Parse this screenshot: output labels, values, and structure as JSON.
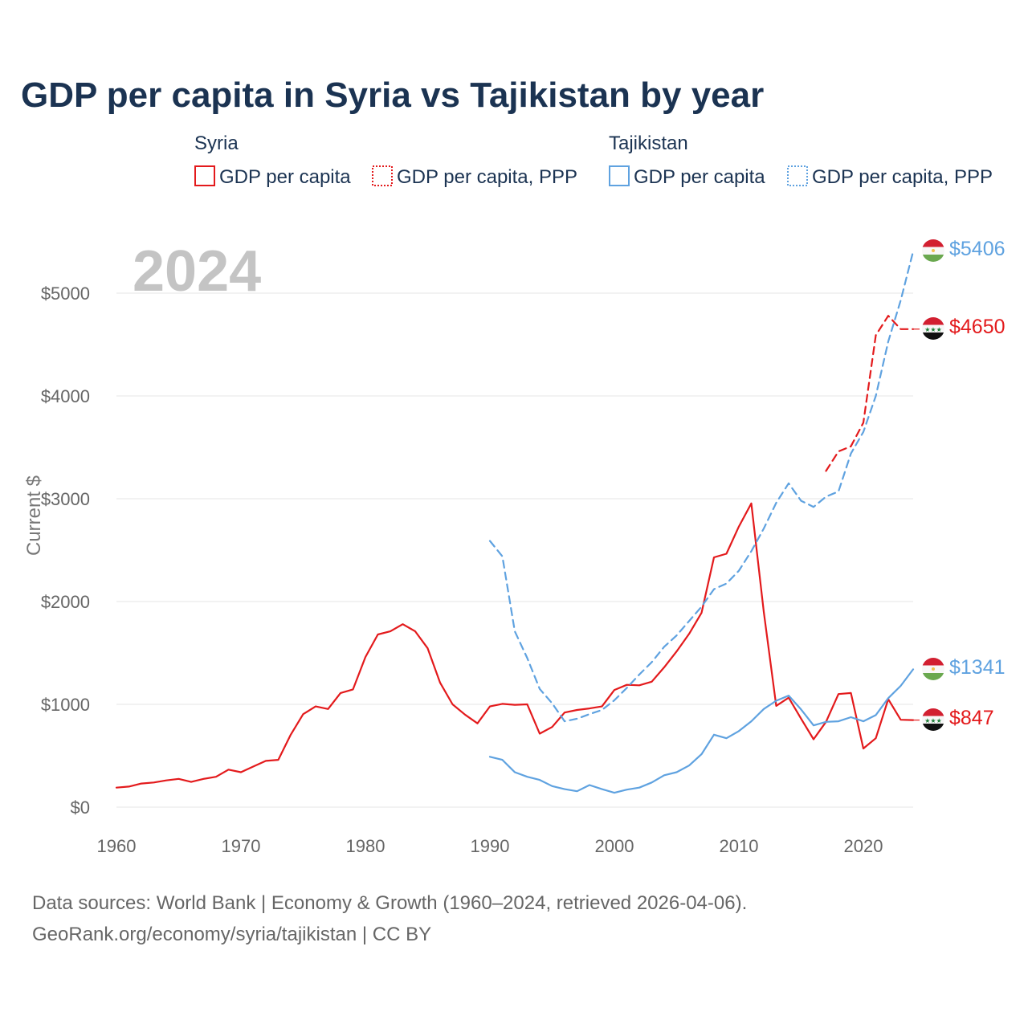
{
  "colors": {
    "syria": "#e31a1c",
    "tajikistan": "#5fa2e0",
    "title": "#1b3352",
    "tick": "#666666"
  },
  "title": "GDP per capita in Syria vs Tajikistan by year",
  "legend": {
    "groups": [
      {
        "name": "Syria",
        "items": [
          "GDP per capita",
          "GDP per capita, PPP"
        ]
      },
      {
        "name": "Tajikistan",
        "items": [
          "GDP per capita",
          "GDP per capita, PPP"
        ]
      }
    ]
  },
  "year_label": "2024",
  "end_labels": {
    "tajikistan_ppp": "$5406",
    "syria_ppp": "$4650",
    "tajikistan_gdp": "$1341",
    "syria_gdp": "$847"
  },
  "flags": {
    "syria": "syria-flag-icon",
    "tajikistan": "tajikistan-flag-icon"
  },
  "source_lines": [
    "Data sources: World Bank | Economy & Growth (1960–2024, retrieved 2026-04-06).",
    "GeoRank.org/economy/syria/tajikistan | CC BY"
  ],
  "chart_data": {
    "type": "line",
    "title": "GDP per capita in Syria vs Tajikistan by year",
    "xlabel": "",
    "ylabel": "Current $",
    "xlim": [
      1960,
      2024
    ],
    "ylim": [
      0,
      5400
    ],
    "x_ticks": [
      1960,
      1970,
      1980,
      1990,
      2000,
      2010,
      2020
    ],
    "x_tick_labels": [
      "1960",
      "1970",
      "1980",
      "1990",
      "2000",
      "2010",
      "2020"
    ],
    "y_ticks": [
      0,
      1000,
      2000,
      3000,
      4000,
      5000
    ],
    "y_tick_labels": [
      "$0",
      "$1000",
      "$2000",
      "$3000",
      "$4000",
      "$5000"
    ],
    "grid": true,
    "series": [
      {
        "name": "Syria — GDP per capita",
        "country": "syria",
        "style": "solid",
        "x": [
          1960,
          1961,
          1962,
          1963,
          1964,
          1965,
          1966,
          1967,
          1968,
          1969,
          1970,
          1971,
          1972,
          1973,
          1974,
          1975,
          1976,
          1977,
          1978,
          1979,
          1980,
          1981,
          1982,
          1983,
          1984,
          1985,
          1986,
          1987,
          1988,
          1989,
          1990,
          1991,
          1992,
          1993,
          1994,
          1995,
          1996,
          1997,
          1998,
          1999,
          2000,
          2001,
          2002,
          2003,
          2004,
          2005,
          2006,
          2007,
          2008,
          2009,
          2010,
          2011,
          2012,
          2013,
          2014,
          2015,
          2016,
          2017,
          2018,
          2019,
          2020,
          2021,
          2022,
          2023,
          2024
        ],
        "y": [
          190,
          200,
          230,
          240,
          260,
          275,
          245,
          275,
          295,
          365,
          340,
          395,
          450,
          460,
          705,
          905,
          980,
          955,
          1110,
          1145,
          1460,
          1680,
          1710,
          1780,
          1710,
          1545,
          1210,
          1000,
          900,
          815,
          980,
          1005,
          995,
          1000,
          715,
          780,
          920,
          945,
          960,
          980,
          1140,
          1190,
          1185,
          1220,
          1360,
          1515,
          1685,
          1890,
          2430,
          2465,
          2730,
          2955,
          1900,
          985,
          1065,
          860,
          660,
          830,
          1100,
          1110,
          570,
          670,
          1050,
          850,
          847
        ]
      },
      {
        "name": "Syria — GDP per capita, PPP",
        "country": "syria",
        "style": "dashed",
        "x": [
          2017,
          2018,
          2019,
          2020,
          2021,
          2022,
          2023,
          2024
        ],
        "y": [
          3270,
          3460,
          3510,
          3740,
          4590,
          4780,
          4650,
          4650
        ]
      },
      {
        "name": "Tajikistan — GDP per capita",
        "country": "tajikistan",
        "style": "solid",
        "x": [
          1990,
          1991,
          1992,
          1993,
          1994,
          1995,
          1996,
          1997,
          1998,
          1999,
          2000,
          2001,
          2002,
          2003,
          2004,
          2005,
          2006,
          2007,
          2008,
          2009,
          2010,
          2011,
          2012,
          2013,
          2014,
          2015,
          2016,
          2017,
          2018,
          2019,
          2020,
          2021,
          2022,
          2023,
          2024
        ],
        "y": [
          490,
          460,
          340,
          295,
          265,
          205,
          175,
          155,
          215,
          175,
          140,
          170,
          190,
          240,
          310,
          340,
          405,
          515,
          705,
          670,
          740,
          835,
          955,
          1035,
          1085,
          950,
          795,
          830,
          835,
          875,
          835,
          895,
          1060,
          1180,
          1341
        ]
      },
      {
        "name": "Tajikistan — GDP per capita, PPP",
        "country": "tajikistan",
        "style": "dashed",
        "x": [
          1990,
          1991,
          1992,
          1993,
          1994,
          1995,
          1996,
          1997,
          1998,
          1999,
          2000,
          2001,
          2002,
          2003,
          2004,
          2005,
          2006,
          2007,
          2008,
          2009,
          2010,
          2011,
          2012,
          2013,
          2014,
          2015,
          2016,
          2017,
          2018,
          2019,
          2020,
          2021,
          2022,
          2023,
          2024
        ],
        "y": [
          2590,
          2440,
          1710,
          1450,
          1150,
          1010,
          835,
          860,
          905,
          945,
          1040,
          1160,
          1290,
          1410,
          1560,
          1670,
          1810,
          1950,
          2120,
          2175,
          2300,
          2490,
          2710,
          2960,
          3150,
          2980,
          2920,
          3020,
          3070,
          3440,
          3650,
          4000,
          4530,
          4930,
          5406
        ]
      }
    ]
  }
}
